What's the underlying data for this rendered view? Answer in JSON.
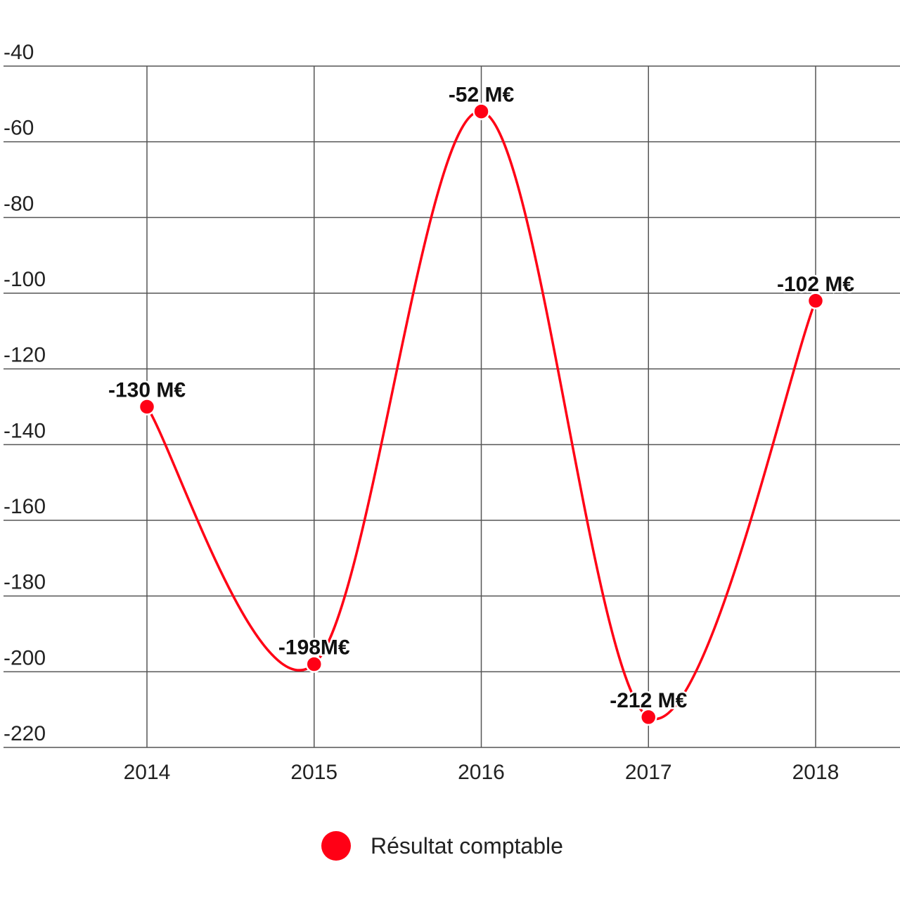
{
  "chart_data": {
    "type": "line",
    "x": [
      "2014",
      "2015",
      "2016",
      "2017",
      "2018"
    ],
    "series": [
      {
        "name": "Résultat comptable",
        "values": [
          -130,
          -198,
          -52,
          -212,
          -102
        ],
        "labels": [
          "-130 M€",
          "-198M€",
          "-52 M€",
          "-212 M€",
          "-102 M€"
        ],
        "color": "#ff0015"
      }
    ],
    "y_ticks": [
      "-40",
      "-60",
      "-80",
      "-100",
      "-120",
      "-140",
      "-160",
      "-180",
      "-200",
      "-220"
    ],
    "ylim": [
      -220,
      -40
    ],
    "smooth": true,
    "grid": true,
    "legend_position": "bottom-center",
    "title": "",
    "xlabel": "",
    "ylabel": ""
  }
}
